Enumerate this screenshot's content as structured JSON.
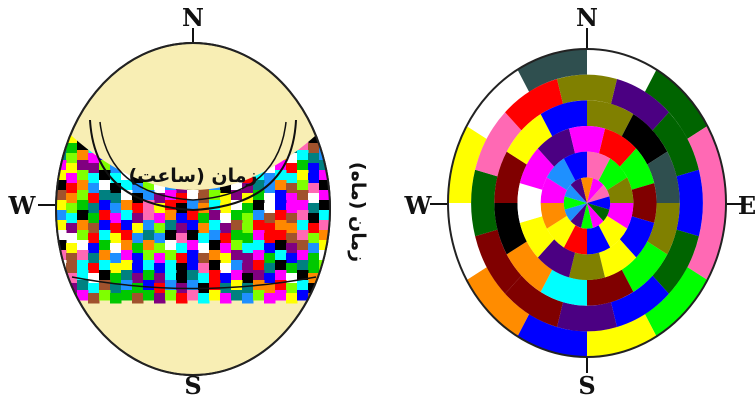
{
  "left_diagram": {
    "compass": {
      "north": "N",
      "south": "S",
      "west": "W"
    },
    "label_hours": "زمان (ساعت)",
    "label_months": "زمان (ماه)",
    "dome_color": "#f8eeb4",
    "palette": [
      "#ff00ff",
      "#00ffff",
      "#ffff00",
      "#00c800",
      "#0000ff",
      "#ff0000",
      "#000000",
      "#ffffff",
      "#ff8800",
      "#7fff00",
      "#800080",
      "#008080",
      "#ff69b4",
      "#1e90ff",
      "#a0522d"
    ]
  },
  "right_diagram": {
    "compass": {
      "north": "N",
      "south": "S",
      "west": "W",
      "east": "E"
    },
    "rings": 6,
    "sectors": 12
  }
}
